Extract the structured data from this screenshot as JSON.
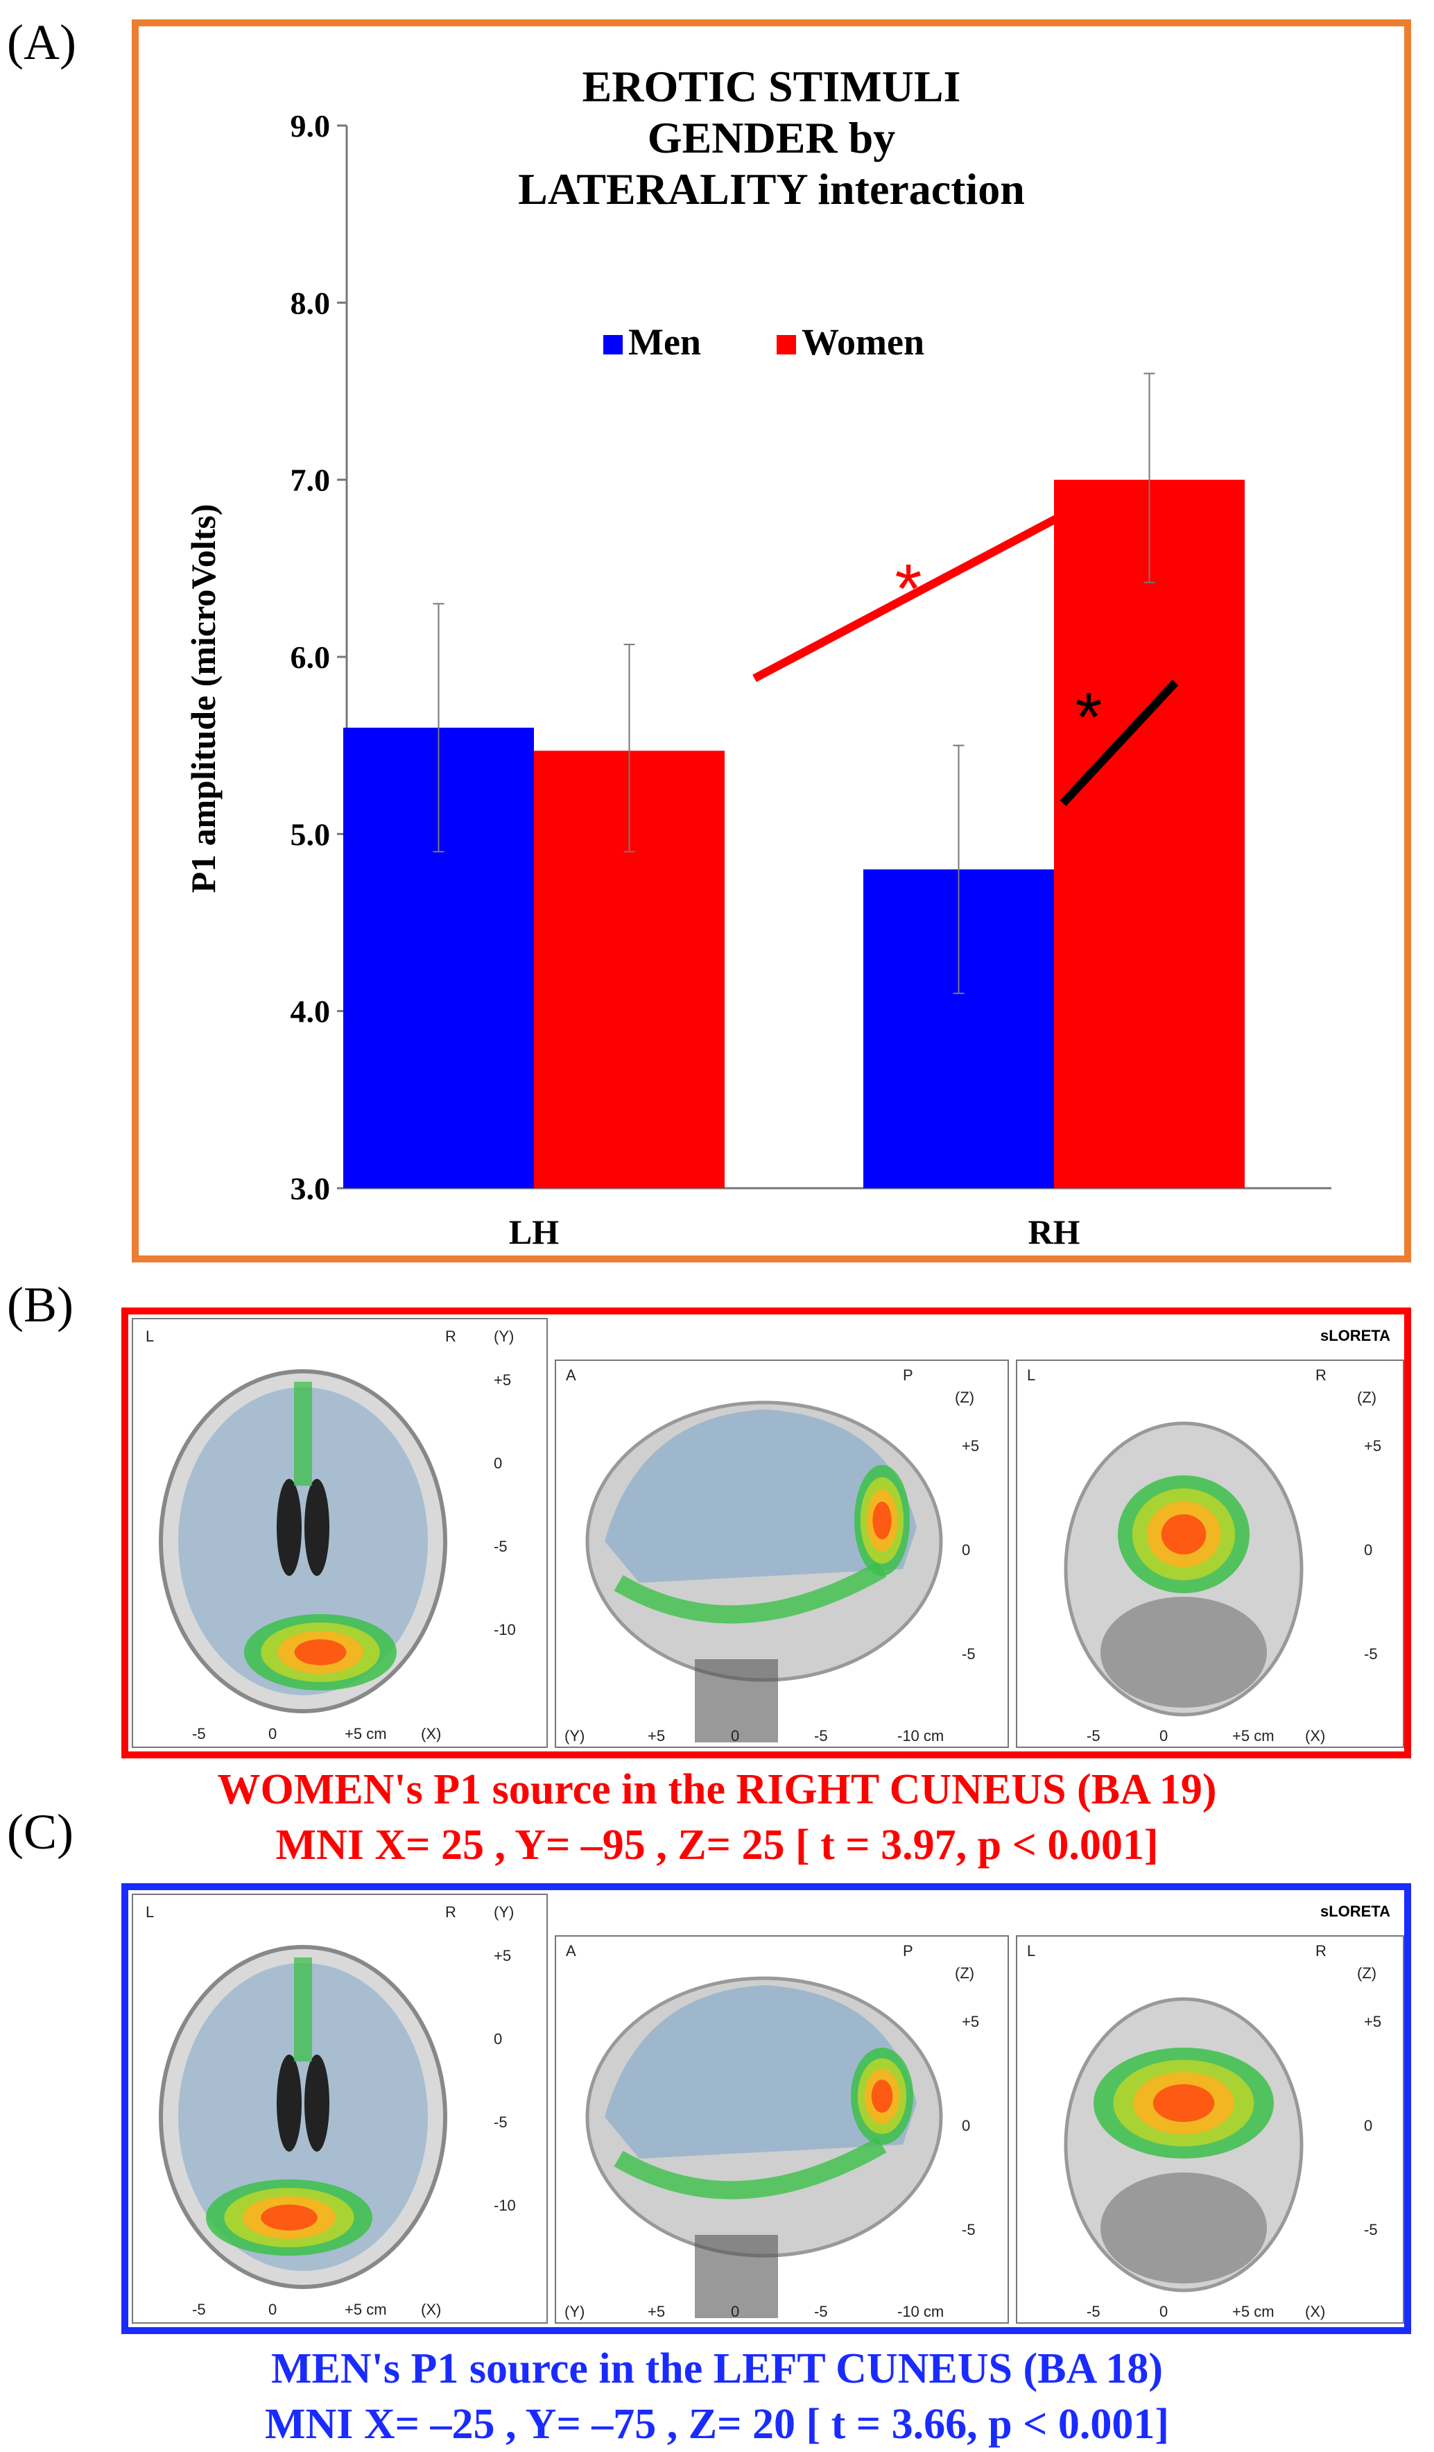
{
  "panel_labels": {
    "a": "(A)",
    "b": "(B)",
    "c": "(C)"
  },
  "chart_data": {
    "type": "bar",
    "title_lines": [
      "EROTIC STIMULI",
      "GENDER by",
      "LATERALITY interaction"
    ],
    "ylabel": "P1 amplitude (microVolts)",
    "xlabel": "",
    "ylim": [
      3.0,
      9.0
    ],
    "yticks": [
      "3.0",
      "4.0",
      "5.0",
      "6.0",
      "7.0",
      "8.0",
      "9.0"
    ],
    "categories": [
      "LH",
      "RH"
    ],
    "series": [
      {
        "name": "Men",
        "color": "#0000ff",
        "values": [
          5.6,
          4.8
        ],
        "err_low": [
          4.9,
          4.1
        ],
        "err_high": [
          6.3,
          5.5
        ]
      },
      {
        "name": "Women",
        "color": "#ff0000",
        "values": [
          5.47,
          7.0
        ],
        "err_low": [
          4.9,
          6.42
        ],
        "err_high": [
          6.07,
          7.6
        ]
      }
    ],
    "legend_position": "top-center",
    "annotations": [
      {
        "text": "*",
        "color": "#ff0000"
      },
      {
        "text": "*",
        "color": "#000000"
      }
    ]
  },
  "panel_b": {
    "badge": "sLORETA",
    "axial": {
      "l": "L",
      "r": "R",
      "axis": "(Y)",
      "ticks": [
        "+5",
        "0",
        "-5",
        "-10"
      ],
      "xticks": [
        "-5",
        "0",
        "+5 cm",
        "(X)"
      ]
    },
    "sagittal": {
      "a": "A",
      "p": "P",
      "axis": "(Z)",
      "ticks": [
        "+5",
        "0",
        "-5"
      ],
      "xticks": [
        "(Y)",
        "+5",
        "0",
        "-5",
        "-10 cm"
      ]
    },
    "coronal": {
      "l": "L",
      "r": "R",
      "axis": "(Z)",
      "ticks": [
        "+5",
        "0",
        "-5"
      ],
      "xticks": [
        "-5",
        "0",
        "+5 cm",
        "(X)"
      ]
    },
    "caption_line1": "WOMEN's P1 source in the RIGHT CUNEUS (BA 19)",
    "caption_line2": "MNI  X= 25 , Y= –95 , Z= 25 [ t = 3.97, p < 0.001]"
  },
  "panel_c": {
    "badge": "sLORETA",
    "axial": {
      "l": "L",
      "r": "R",
      "axis": "(Y)",
      "ticks": [
        "+5",
        "0",
        "-5",
        "-10"
      ],
      "xticks": [
        "-5",
        "0",
        "+5 cm",
        "(X)"
      ]
    },
    "sagittal": {
      "a": "A",
      "p": "P",
      "axis": "(Z)",
      "ticks": [
        "+5",
        "0",
        "-5"
      ],
      "xticks": [
        "(Y)",
        "+5",
        "0",
        "-5",
        "-10 cm"
      ]
    },
    "coronal": {
      "l": "L",
      "r": "R",
      "axis": "(Z)",
      "ticks": [
        "+5",
        "0",
        "-5"
      ],
      "xticks": [
        "-5",
        "0",
        "+5 cm",
        "(X)"
      ]
    },
    "caption_line1": "MEN's P1 source in the LEFT CUNEUS (BA 18)",
    "caption_line2": "MNI  X= –25 , Y= –75 , Z= 20 [ t = 3.66, p < 0.001]"
  }
}
